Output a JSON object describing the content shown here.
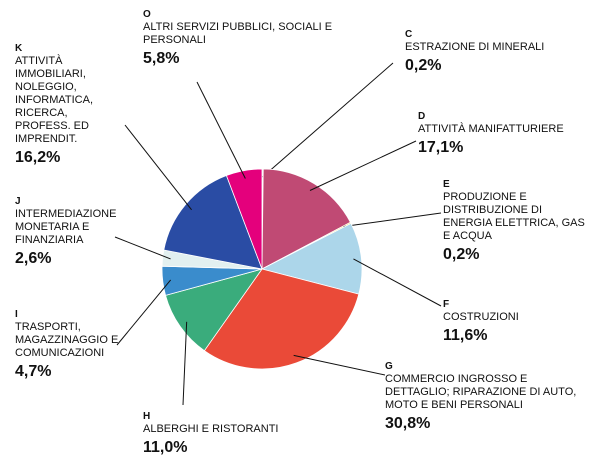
{
  "chart_data": {
    "type": "pie",
    "codes": [
      "C",
      "D",
      "E",
      "F",
      "G",
      "H",
      "I",
      "J",
      "K",
      "O"
    ],
    "categories": [
      "ESTRAZIONE DI MINERALI",
      "ATTIVITÀ MANIFATTURIERE",
      "PRODUZIONE E DISTRIBUZIONE DI ENERGIA ELETTRICA, GAS E ACQUA",
      "COSTRUZIONI",
      "COMMERCIO INGROSSO E DETTAGLIO; RIPARAZIONE DI AUTO, MOTO E BENI PERSONALI",
      "ALBERGHI E RISTORANTI",
      "TRASPORTI, MAGAZZINAGGIO E COMUNICAZIONI",
      "INTERMEDIAZIONE MONETARIA E FINANZIARIA",
      "ATTIVITÀ IMMOBILIARI, NOLEGGIO, INFORMATICA, RICERCA, PROFESS. ED IMPRENDIT.",
      "ALTRI SERVIZI PUBBLICI, SOCIALI E PERSONALI"
    ],
    "values": [
      0.2,
      17.1,
      0.2,
      11.6,
      30.8,
      11.0,
      4.7,
      2.6,
      16.2,
      5.8
    ],
    "value_labels": [
      "0,2%",
      "17,1%",
      "0,2%",
      "11,6%",
      "30,8%",
      "11,0%",
      "4,7%",
      "2,6%",
      "16,2%",
      "5,8%"
    ],
    "colors": [
      "#e8e8e8",
      "#c04a74",
      "#f0cc3c",
      "#acd6ea",
      "#ea4a38",
      "#3aac7c",
      "#3a8ccc",
      "#e2f0f0",
      "#2a4ca4",
      "#e4007c"
    ]
  }
}
